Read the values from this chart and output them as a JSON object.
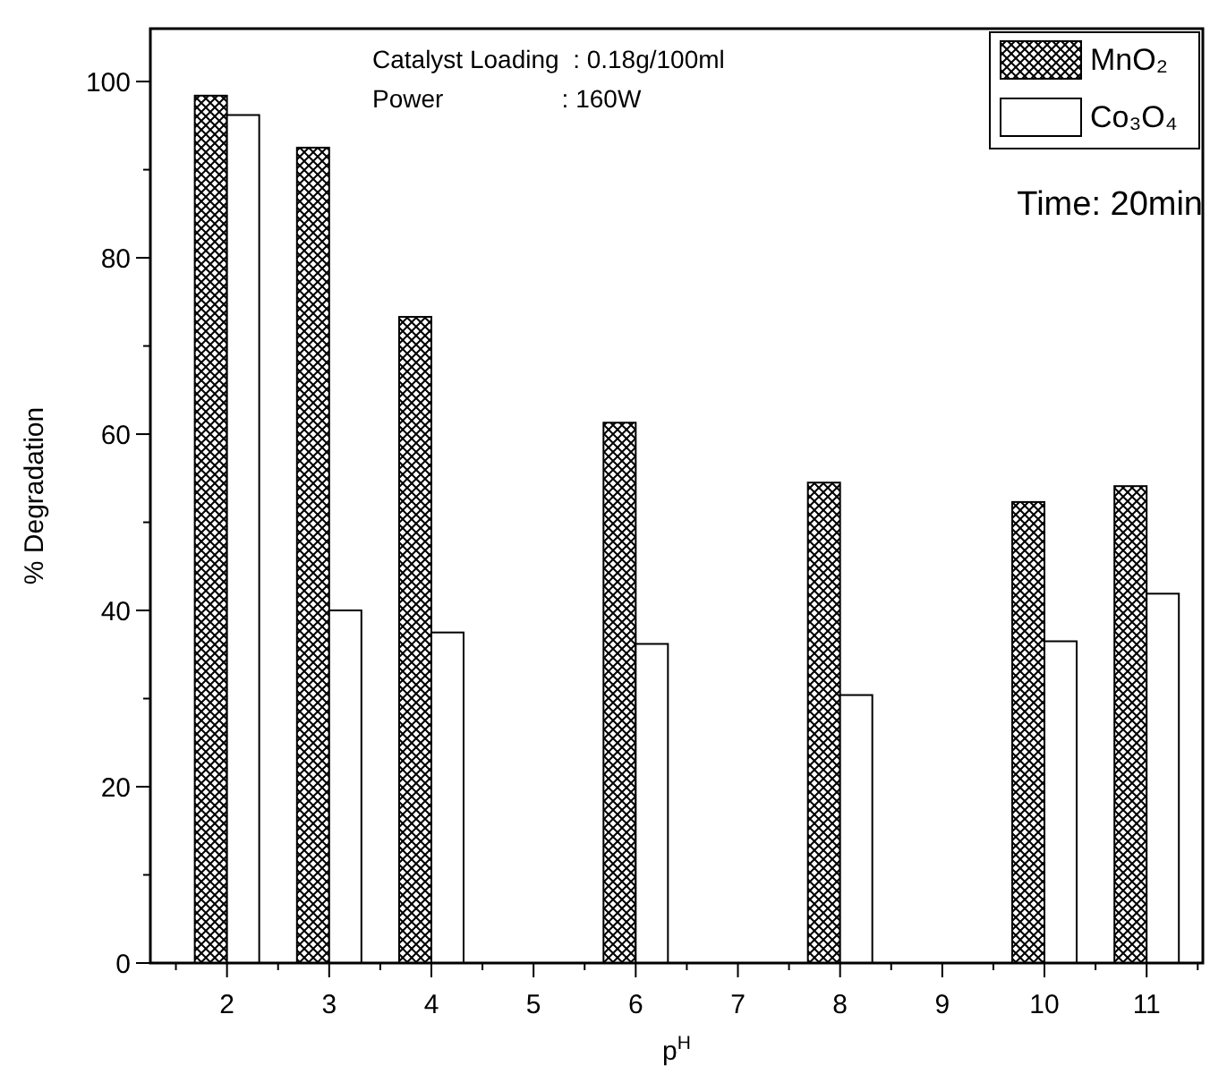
{
  "chart_data": {
    "type": "bar",
    "xlabel": "p$^{H}$",
    "ylabel": "% Degradation",
    "x": [
      2,
      3,
      4,
      6,
      8,
      10,
      11
    ],
    "series": [
      {
        "name": "MnO₂",
        "color": "#000000",
        "values": [
          98.4,
          92.5,
          73.3,
          61.3,
          54.5,
          52.3,
          54.1
        ]
      },
      {
        "name": "Co₃O₄",
        "color": "#ffffff",
        "values": [
          96.2,
          40,
          37.5,
          36.2,
          30.4,
          36.5,
          41.9
        ]
      }
    ],
    "xlim": [
      1.25,
      11.55
    ],
    "xticks": [
      2,
      3,
      4,
      5,
      6,
      7,
      8,
      9,
      10,
      11
    ],
    "ylim": [
      0,
      106
    ],
    "yticks": [
      0,
      {
        "value": 10,
        "label": null
      },
      20,
      {
        "value": 30,
        "label": null
      },
      40,
      {
        "value": 50,
        "label": null
      },
      60,
      {
        "value": 70,
        "label": null
      },
      80,
      {
        "value": 90,
        "label": null
      },
      100
    ],
    "legend": "top right",
    "grid": false,
    "annotations": [
      "Catalyst Loading  : 0.18g/100ml",
      "Power                 : 160W",
      "Time: 20min"
    ]
  }
}
